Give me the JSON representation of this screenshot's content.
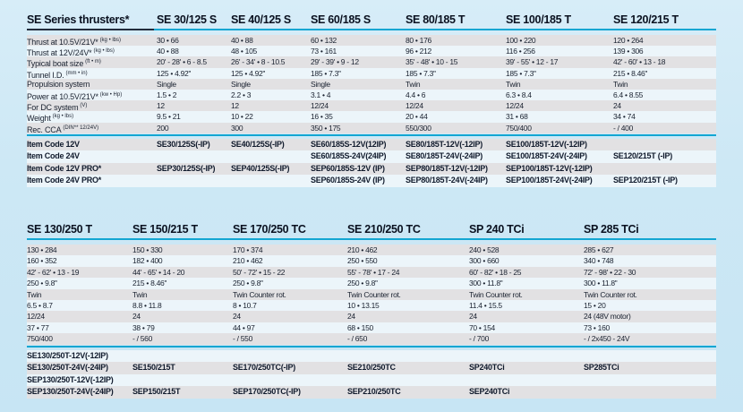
{
  "colors": {
    "page_background": "#cde8f5",
    "stripe_gray": "#e2e1e3",
    "stripe_light": "#ecf5fa",
    "rule_cyan": "#13a6d2",
    "title_rule_dark": "#222c3c",
    "text": "#1a2230"
  },
  "table1": {
    "title": "SE Series thrusters*",
    "row_labels": [
      {
        "text": "Thrust at 10.5V/21V*",
        "sup": "(kg • lbs)"
      },
      {
        "text": "Thrust at 12V/24V*",
        "sup": "(kg • lbs)"
      },
      {
        "text": "Typical boat size",
        "sup": "(ft • m)"
      },
      {
        "text": "Tunnel I.D.",
        "sup": "(mm • in)"
      },
      {
        "text": "Propulsion system",
        "sup": ""
      },
      {
        "text": "Power at 10.5V/21V*",
        "sup": "(kw • Hp)"
      },
      {
        "text": "For DC system",
        "sup": "(V)"
      },
      {
        "text": "Weight",
        "sup": "(kg • lbs)"
      },
      {
        "text": "Rec. CCA",
        "sup": "(DIN** 12/24V)"
      }
    ],
    "code_row_labels": [
      "Item Code 12V",
      "Item Code 24V",
      "Item Code 12V PRO*",
      "Item Code 24V PRO*"
    ],
    "columns": [
      {
        "header": "SE 30/125 S",
        "values": [
          "30 • 66",
          "40 • 88",
          "20' - 28' • 6 - 8.5",
          "125 • 4.92''",
          "Single",
          "1.5 • 2",
          "12",
          "9.5 • 21",
          "200"
        ],
        "codes": [
          "SE30/125S(-IP)",
          "",
          "SEP30/125S(-IP)",
          ""
        ]
      },
      {
        "header": "SE 40/125 S",
        "values": [
          "40 • 88",
          "48 • 105",
          "26' - 34' • 8 - 10.5",
          "125 • 4.92''",
          "Single",
          "2.2 • 3",
          "12",
          "10 • 22",
          "300"
        ],
        "codes": [
          "SE40/125S(-IP)",
          "",
          "SEP40/125S(-IP)",
          ""
        ]
      },
      {
        "header": "SE 60/185 S",
        "values": [
          "60 • 132",
          "73 • 161",
          "29' - 39' • 9 - 12",
          "185 • 7.3''",
          "Single",
          "3.1 • 4",
          "12/24",
          "16 • 35",
          "350 • 175"
        ],
        "codes": [
          "SE60/185S-12V(12IP)",
          "SE60/185S-24V(24IP)",
          "SEP60/185S-12V (IP)",
          "SEP60/185S-24V (IP)"
        ]
      },
      {
        "header": "SE 80/185 T",
        "values": [
          "80 • 176",
          "96 • 212",
          "35' - 48' • 10 - 15",
          "185 • 7.3''",
          "Twin",
          "4.4 • 6",
          "12/24",
          "20 • 44",
          "550/300"
        ],
        "codes": [
          "SE80/185T-12V(-12IP)",
          "SE80/185T-24V(-24IP)",
          "SEP80/185T-12V(-12IP)",
          "SEP80/185T-24V(-24IP)"
        ]
      },
      {
        "header": "SE 100/185 T",
        "values": [
          "100 • 220",
          "116 • 256",
          "39' - 55' • 12 - 17",
          "185 • 7.3''",
          "Twin",
          "6.3 • 8.4",
          "12/24",
          "31 • 68",
          "750/400"
        ],
        "codes": [
          "SE100/185T-12V(-12IP)",
          "SE100/185T-24V(-24IP)",
          "SEP100/185T-12V(-12IP)",
          "SEP100/185T-24V(-24IP)"
        ]
      },
      {
        "header": "SE 120/215 T",
        "values": [
          "120 • 264",
          "139 • 306",
          "42' - 60' • 13 - 18",
          "215 • 8.46''",
          "Twin",
          "6.4 • 8.55",
          "24",
          "34 • 74",
          "- / 400"
        ],
        "codes": [
          "",
          "SE120/215T (-IP)",
          "",
          "SEP120/215T (-IP)"
        ]
      }
    ]
  },
  "table2": {
    "columns": [
      {
        "header": "SE 130/250 T",
        "values": [
          "130 • 284",
          "160 • 352",
          "42' - 62' • 13 - 19",
          "250 • 9.8''",
          "Twin",
          "6.5 • 8.7",
          "12/24",
          "37 • 77",
          "750/400"
        ],
        "codes": [
          "SE130/250T-12V(-12IP)",
          "SE130/250T-24V(-24IP)",
          "SEP130/250T-12V(-12IP)",
          "SEP130/250T-24V(-24IP)"
        ]
      },
      {
        "header": "SE 150/215 T",
        "values": [
          "150 • 330",
          "182 • 400",
          "44' - 65' • 14 - 20",
          "215 • 8.46''",
          "Twin",
          "8.8 • 11.8",
          "24",
          "38 • 79",
          "- / 560"
        ],
        "codes": [
          "",
          "SE150/215T",
          "",
          "SEP150/215T"
        ]
      },
      {
        "header": "SE 170/250 TC",
        "values": [
          "170 • 374",
          "210 • 462",
          "50' - 72' • 15 - 22",
          "250 • 9.8''",
          "Twin Counter rot.",
          "8 • 10.7",
          "24",
          "44 • 97",
          "- / 550"
        ],
        "codes": [
          "",
          "SE170/250TC(-IP)",
          "",
          "SEP170/250TC(-IP)"
        ]
      },
      {
        "header": "SE 210/250 TC",
        "values": [
          "210 • 462",
          "250 • 550",
          "55' - 78' • 17 - 24",
          "250 • 9.8''",
          "Twin Counter rot.",
          "10 • 13.15",
          "24",
          "68 • 150",
          "- / 650"
        ],
        "codes": [
          "",
          "SE210/250TC",
          "",
          "SEP210/250TC"
        ]
      },
      {
        "header": "SP 240 TCi",
        "values": [
          "240 • 528",
          "300 • 660",
          "60' - 82' • 18 - 25",
          "300 • 11.8''",
          "Twin Counter rot.",
          "11.4 • 15.5",
          "24",
          "70 • 154",
          "- / 700"
        ],
        "codes": [
          "",
          "SP240TCi",
          "",
          "SEP240TCi"
        ]
      },
      {
        "header": "SP 285 TCi",
        "values": [
          "285 • 627",
          "340 • 748",
          "72' - 98' • 22 - 30",
          "300 • 11.8''",
          "Twin Counter rot.",
          "15 • 20",
          "24 (48V motor)",
          "73 • 160",
          "- / 2x450 - 24V"
        ],
        "codes": [
          "",
          "SP285TCi",
          "",
          ""
        ]
      }
    ]
  }
}
